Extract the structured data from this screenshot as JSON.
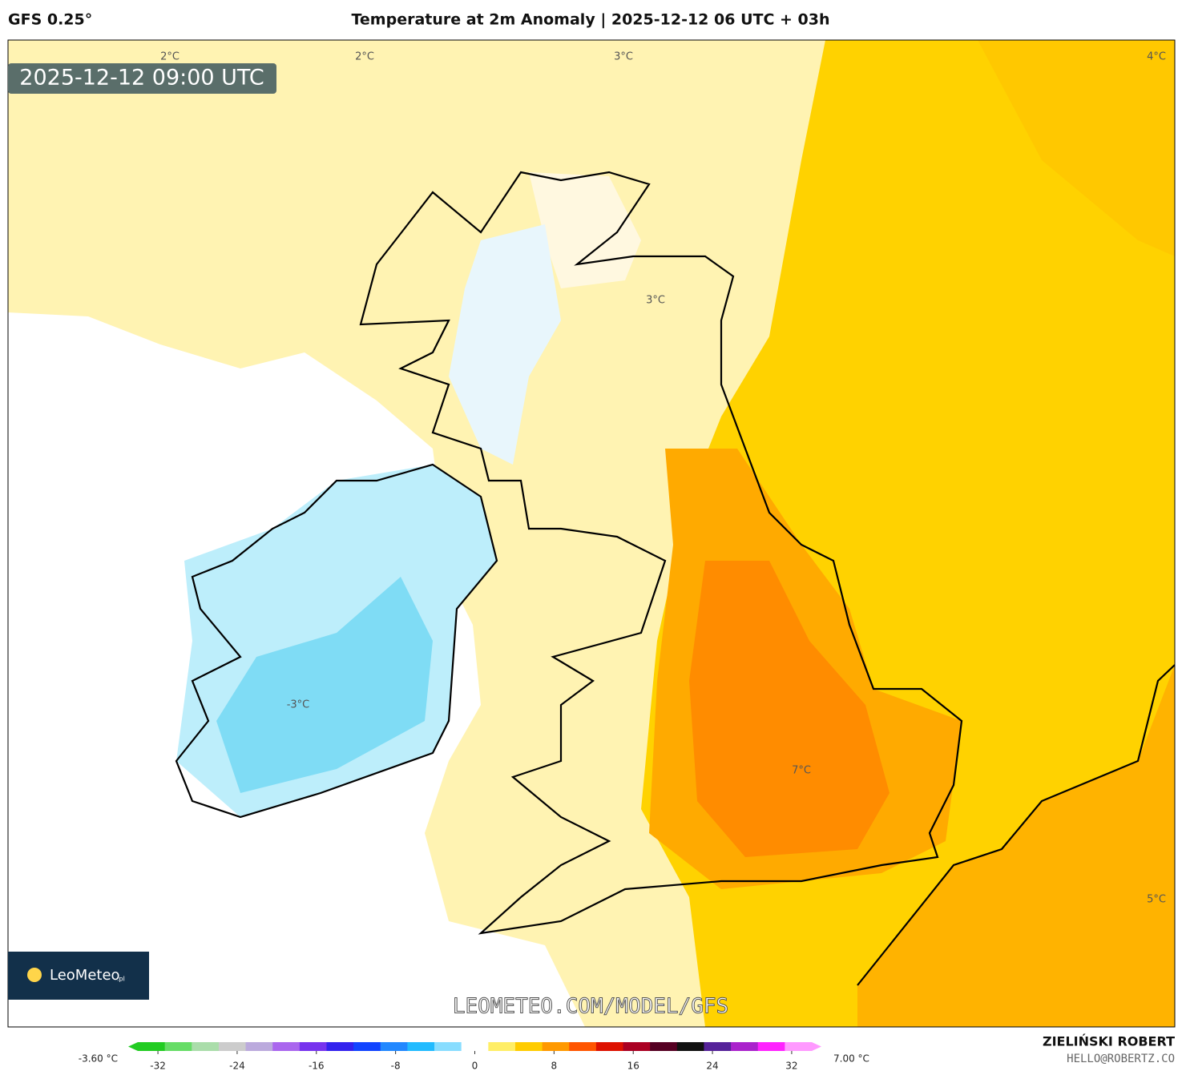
{
  "header": {
    "model": "GFS 0.25°",
    "title": "Temperature at 2m Anomaly | 2025-12-12 06 UTC + 03h"
  },
  "timestamp": "2025-12-12 09:00 UTC",
  "contour_labels": [
    "2°C",
    "2°C",
    "3°C",
    "4°C",
    "3°C",
    "-3°C",
    "7°C",
    "5°C"
  ],
  "watermark": "LEOMETEO.COM/MODEL/GFS",
  "logo": {
    "name": "LeoMeteo",
    "suffix": ".pl"
  },
  "colorbar": {
    "min_label": "-3.60 °C",
    "max_label": "7.00 °C",
    "lim": [
      -35,
      35
    ],
    "ticks": [
      -32,
      -24,
      -16,
      -8,
      0,
      8,
      16,
      24,
      32
    ],
    "colors": [
      "#22cc22",
      "#66dd66",
      "#aaddaa",
      "#cccccc",
      "#bbaadd",
      "#aa66ee",
      "#7733ee",
      "#3322ee",
      "#1144ff",
      "#2288ff",
      "#22bbff",
      "#88ddff",
      "#ffffff",
      "#ffee66",
      "#ffcc00",
      "#ff9900",
      "#ff5500",
      "#dd1100",
      "#aa0022",
      "#550022",
      "#111111",
      "#552299",
      "#aa22cc",
      "#ff22ff",
      "#ff99ff"
    ]
  },
  "footer": {
    "author": "ZIELIŃSKI ROBERT",
    "contact": "HELLO@ROBERTZ.CO"
  }
}
